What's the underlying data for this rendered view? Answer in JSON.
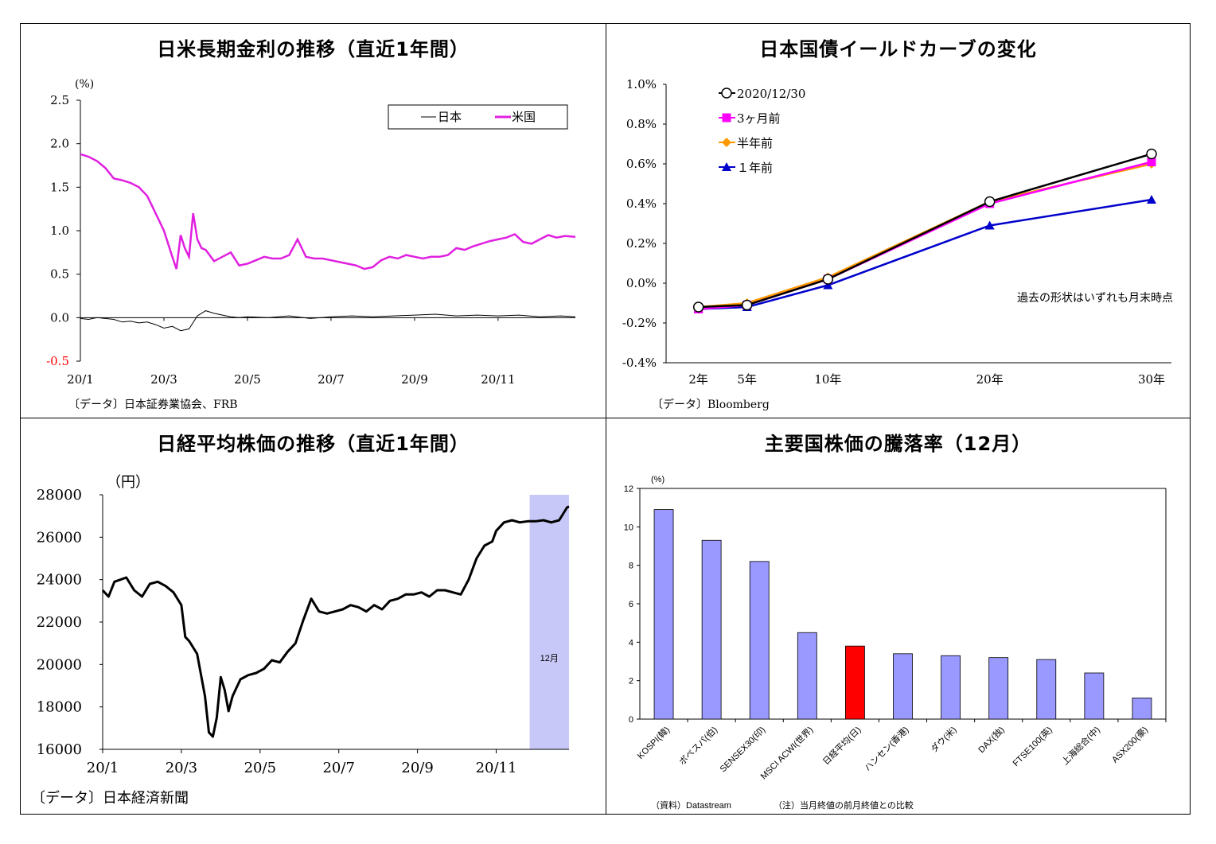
{
  "chart_data": [
    {
      "id": "jgb_ust",
      "type": "line",
      "title": "日米長期金利の推移（直近1年間）",
      "unit": "(%)",
      "ylim": [
        -0.5,
        2.5
      ],
      "yticks": [
        "2.5",
        "2.0",
        "1.5",
        "1.0",
        "0.5",
        "0.0",
        "-0.5"
      ],
      "xticks": [
        "20/1",
        "20/3",
        "20/5",
        "20/7",
        "20/9",
        "20/11"
      ],
      "legend": "top-right",
      "source": "〔データ〕日本証券業協会、FRB",
      "colors": {
        "日本": "#000000",
        "米国": "#e020e0",
        "negative_tick": "#ff0000"
      },
      "series": [
        {
          "name": "日本",
          "x": [
            0,
            0.2,
            0.4,
            0.6,
            0.8,
            1.0,
            1.2,
            1.4,
            1.6,
            1.8,
            2.0,
            2.2,
            2.4,
            2.6,
            2.8,
            3.0,
            3.2,
            3.4,
            3.6,
            3.8,
            4.0,
            4.5,
            5.0,
            5.5,
            6.0,
            6.5,
            7.0,
            7.5,
            8.0,
            8.5,
            9.0,
            9.5,
            10.0,
            10.5,
            11.0,
            11.5,
            11.85
          ],
          "y": [
            -0.01,
            -0.02,
            0.0,
            -0.01,
            -0.02,
            -0.05,
            -0.04,
            -0.06,
            -0.05,
            -0.08,
            -0.12,
            -0.1,
            -0.15,
            -0.13,
            0.02,
            0.08,
            0.05,
            0.03,
            0.01,
            0.0,
            0.01,
            0.0,
            0.02,
            -0.01,
            0.01,
            0.02,
            0.01,
            0.02,
            0.03,
            0.04,
            0.02,
            0.03,
            0.02,
            0.03,
            0.01,
            0.02,
            0.01
          ]
        },
        {
          "name": "米国",
          "x": [
            0,
            0.2,
            0.4,
            0.6,
            0.8,
            1.0,
            1.2,
            1.4,
            1.6,
            1.8,
            2.0,
            2.2,
            2.3,
            2.4,
            2.5,
            2.6,
            2.7,
            2.8,
            2.9,
            3.0,
            3.2,
            3.4,
            3.6,
            3.8,
            4.0,
            4.2,
            4.4,
            4.6,
            4.8,
            5.0,
            5.2,
            5.4,
            5.6,
            5.8,
            6.0,
            6.2,
            6.4,
            6.6,
            6.8,
            7.0,
            7.2,
            7.4,
            7.6,
            7.8,
            8.0,
            8.2,
            8.4,
            8.6,
            8.8,
            9.0,
            9.2,
            9.4,
            9.6,
            9.8,
            10.0,
            10.2,
            10.4,
            10.6,
            10.8,
            11.0,
            11.2,
            11.4,
            11.6,
            11.85
          ],
          "y": [
            1.88,
            1.85,
            1.8,
            1.72,
            1.6,
            1.58,
            1.55,
            1.5,
            1.4,
            1.2,
            1.0,
            0.7,
            0.56,
            0.95,
            0.8,
            0.7,
            1.2,
            0.9,
            0.8,
            0.78,
            0.65,
            0.7,
            0.75,
            0.6,
            0.62,
            0.66,
            0.7,
            0.68,
            0.68,
            0.72,
            0.9,
            0.7,
            0.68,
            0.68,
            0.66,
            0.64,
            0.62,
            0.6,
            0.56,
            0.58,
            0.66,
            0.7,
            0.68,
            0.72,
            0.7,
            0.68,
            0.7,
            0.7,
            0.72,
            0.8,
            0.78,
            0.82,
            0.85,
            0.88,
            0.9,
            0.92,
            0.96,
            0.87,
            0.85,
            0.9,
            0.95,
            0.92,
            0.94,
            0.93
          ]
        }
      ]
    },
    {
      "id": "jgb_curve",
      "type": "line",
      "title": "日本国債イールドカーブの変化",
      "ylim": [
        -0.4,
        1.0
      ],
      "yticks": [
        "1.0%",
        "0.8%",
        "0.6%",
        "0.4%",
        "0.2%",
        "0.0%",
        "-0.2%",
        "-0.4%"
      ],
      "categories": [
        "2年",
        "5年",
        "10年",
        "20年",
        "30年"
      ],
      "x": [
        2,
        5,
        10,
        20,
        30
      ],
      "legend": "top-left",
      "annotation": "過去の形状はいずれも月末時点",
      "source": "〔データ〕Bloomberg",
      "series": [
        {
          "name": "2020/12/30",
          "color": "#000000",
          "marker": "circle-open",
          "values": [
            -0.12,
            -0.11,
            0.02,
            0.41,
            0.65
          ]
        },
        {
          "name": "3ヶ月前",
          "color": "#ff00ff",
          "marker": "square",
          "values": [
            -0.13,
            -0.11,
            0.02,
            0.4,
            0.61
          ]
        },
        {
          "name": "半年前",
          "color": "#ff9900",
          "marker": "diamond",
          "values": [
            -0.12,
            -0.1,
            0.03,
            0.41,
            0.6
          ]
        },
        {
          "name": "１年前",
          "color": "#0000cc",
          "marker": "triangle",
          "values": [
            -0.13,
            -0.12,
            -0.01,
            0.29,
            0.42
          ]
        }
      ]
    },
    {
      "id": "nikkei",
      "type": "line",
      "title": "日経平均株価の推移（直近1年間）",
      "unit": "（円）",
      "ylim": [
        16000,
        28000
      ],
      "yticks": [
        "28000",
        "26000",
        "24000",
        "22000",
        "20000",
        "18000",
        "16000"
      ],
      "xticks": [
        "20/1",
        "20/3",
        "20/5",
        "20/7",
        "20/9",
        "20/11"
      ],
      "highlight": {
        "label": "12月",
        "from": 10.85,
        "to": 11.85,
        "color": "#c8c8f8"
      },
      "source": "〔データ〕日本経済新聞",
      "series": [
        {
          "name": "日経平均株価",
          "color": "#000000",
          "x": [
            0,
            0.15,
            0.3,
            0.45,
            0.6,
            0.8,
            1.0,
            1.2,
            1.4,
            1.6,
            1.8,
            2.0,
            2.1,
            2.2,
            2.4,
            2.6,
            2.7,
            2.8,
            2.9,
            3.0,
            3.1,
            3.2,
            3.3,
            3.5,
            3.7,
            3.9,
            4.1,
            4.3,
            4.5,
            4.7,
            4.9,
            5.1,
            5.3,
            5.5,
            5.7,
            5.9,
            6.1,
            6.3,
            6.5,
            6.7,
            6.9,
            7.1,
            7.3,
            7.5,
            7.7,
            7.9,
            8.1,
            8.3,
            8.5,
            8.7,
            8.9,
            9.1,
            9.3,
            9.5,
            9.7,
            9.9,
            10.0,
            10.2,
            10.4,
            10.6,
            10.8,
            11.0,
            11.2,
            11.4,
            11.6,
            11.8,
            11.85
          ],
          "y": [
            23500,
            23200,
            23900,
            24000,
            24100,
            23500,
            23200,
            23800,
            23900,
            23700,
            23400,
            22800,
            21300,
            21100,
            20500,
            18500,
            16800,
            16600,
            17500,
            19400,
            18800,
            17800,
            18500,
            19300,
            19500,
            19600,
            19800,
            20200,
            20100,
            20600,
            21000,
            22100,
            23100,
            22500,
            22400,
            22500,
            22600,
            22800,
            22700,
            22500,
            22800,
            22600,
            23000,
            23100,
            23300,
            23300,
            23400,
            23200,
            23500,
            23500,
            23400,
            23300,
            24000,
            25000,
            25600,
            25800,
            26300,
            26700,
            26800,
            26700,
            26750,
            26750,
            26800,
            26700,
            26800,
            27400,
            27450
          ]
        }
      ]
    },
    {
      "id": "world_stocks",
      "type": "bar",
      "title": "主要国株価の騰落率（12月）",
      "unit": "(%)",
      "ylim": [
        0,
        12
      ],
      "yticks": [
        "12",
        "10",
        "8",
        "6",
        "4",
        "2",
        "0"
      ],
      "categories": [
        "KOSPI(韓)",
        "ボベスパ(伯)",
        "SENSEX30(印)",
        "MSCI ACWI(世界)",
        "日経平均(日)",
        "ハンセン(香港)",
        "ダウ(米)",
        "DAX(独)",
        "FTSE100(英)",
        "上海総合(中)",
        "ASX200(豪)"
      ],
      "values": [
        10.9,
        9.3,
        8.2,
        4.5,
        3.8,
        3.4,
        3.3,
        3.2,
        3.1,
        2.4,
        1.1
      ],
      "colors": {
        "bar": "#9999ff",
        "highlight": "#ff0000"
      },
      "highlight_index": 4,
      "source": "（資料）Datastream",
      "note": "（注）当月終値の前月終値との比較"
    }
  ]
}
